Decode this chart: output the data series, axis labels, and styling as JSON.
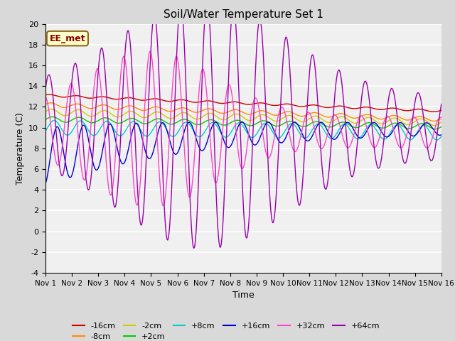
{
  "title": "Soil/Water Temperature Set 1",
  "xlabel": "Time",
  "ylabel": "Temperature (C)",
  "ylim": [
    -4,
    20
  ],
  "xlim": [
    0,
    15
  ],
  "background_color": "#d9d9d9",
  "plot_bg_color": "#f0f0f0",
  "annotation_label": "EE_met",
  "annotation_bg": "#ffffcc",
  "annotation_border": "#8B0000",
  "xtick_labels": [
    "Nov 1",
    "Nov 2",
    "Nov 3",
    "Nov 4",
    "Nov 5",
    "Nov 6",
    "Nov 7",
    "Nov 8",
    "Nov 9",
    "Nov 10",
    "Nov 11",
    "Nov 12",
    "Nov 13",
    "Nov 14",
    "Nov 15",
    "Nov 16"
  ],
  "ytick_values": [
    -4,
    -2,
    0,
    2,
    4,
    6,
    8,
    10,
    12,
    14,
    16,
    18,
    20
  ],
  "colors": {
    "-16cm": "#cc0000",
    "-8cm": "#ff8c00",
    "-2cm": "#cccc00",
    "+2cm": "#00cc00",
    "+8cm": "#00cccc",
    "+16cm": "#0000cc",
    "+32cm": "#ff44cc",
    "+64cm": "#9900aa"
  }
}
